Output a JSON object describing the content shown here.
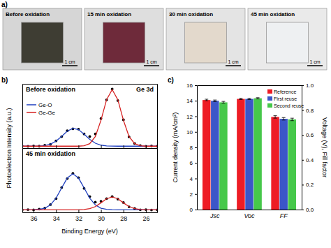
{
  "panel_a": {
    "label": "a)",
    "scale_bar": "1 cm",
    "photos": [
      {
        "label": "Before oxidation",
        "color": "#3e3d33"
      },
      {
        "label": "15 min oxidation",
        "color": "#6e2a3a"
      },
      {
        "label": "30 min oxidation",
        "color": "#e3d9cc"
      },
      {
        "label": "45 min oxidation",
        "color": "#eef0f2"
      }
    ]
  },
  "chart_data": [
    {
      "type": "line",
      "panel_label": "b)",
      "title": "Before oxidation",
      "annotation": "Ge 3d",
      "ylabel": "Photoelectron Intensity (a.u.)",
      "x": [
        37,
        36.5,
        36,
        35.5,
        35,
        34.5,
        34,
        33.5,
        33,
        32.5,
        32,
        31.5,
        31,
        30.5,
        30,
        29.5,
        29,
        28.5,
        28,
        27.5,
        27,
        26.5,
        26,
        25.5,
        25
      ],
      "xlim": [
        37,
        25
      ],
      "xticks": [
        36,
        34,
        32,
        30,
        28,
        26
      ],
      "ylim": [
        0,
        1
      ],
      "tick_labels": false,
      "legend": "center left",
      "grid": false,
      "series": [
        {
          "type": "scatter",
          "marker": "circle",
          "color": "#000000",
          "values": [
            0.032,
            0.028,
            0.035,
            0.03,
            0.045,
            0.058,
            0.112,
            0.178,
            0.27,
            0.3,
            0.295,
            0.22,
            0.18,
            0.22,
            0.46,
            0.75,
            0.92,
            0.74,
            0.44,
            0.175,
            0.072,
            0.04,
            0.028,
            0.033,
            0.03
          ]
        },
        {
          "name": "Ge-O",
          "color": "#1f3fbf",
          "values": [
            0.03,
            0.03,
            0.03,
            0.032,
            0.04,
            0.061,
            0.108,
            0.183,
            0.264,
            0.309,
            0.288,
            0.217,
            0.135,
            0.076,
            0.046,
            0.034,
            0.031,
            0.03,
            0.03,
            0.03,
            0.03,
            0.03,
            0.03,
            0.03,
            0.03
          ]
        },
        {
          "name": "Ge-Ge",
          "color": "#d62020",
          "values": [
            0.03,
            0.03,
            0.03,
            0.03,
            0.03,
            0.03,
            0.03,
            0.03,
            0.03,
            0.03,
            0.03,
            0.037,
            0.069,
            0.181,
            0.433,
            0.754,
            0.91,
            0.754,
            0.433,
            0.181,
            0.069,
            0.037,
            0.03,
            0.03,
            0.03
          ]
        }
      ]
    },
    {
      "type": "line",
      "title": "45 min oxidation",
      "xlabel": "Binding Energy (eV)",
      "x": [
        37,
        36.5,
        36,
        35.5,
        35,
        34.5,
        34,
        33.5,
        33,
        32.5,
        32,
        31.5,
        31,
        30.5,
        30,
        29.5,
        29,
        28.5,
        28,
        27.5,
        27,
        26.5,
        26,
        25.5,
        25
      ],
      "xlim": [
        37,
        25
      ],
      "xticks": [
        36,
        34,
        32,
        30,
        28,
        26
      ],
      "ylim": [
        0,
        0.75
      ],
      "tick_labels": "x",
      "grid": false,
      "series": [
        {
          "type": "scatter",
          "marker": "circle",
          "color": "#000000",
          "values": [
            0.03,
            0.032,
            0.029,
            0.038,
            0.05,
            0.09,
            0.16,
            0.29,
            0.395,
            0.455,
            0.405,
            0.28,
            0.185,
            0.12,
            0.13,
            0.16,
            0.185,
            0.155,
            0.115,
            0.065,
            0.045,
            0.03,
            0.032,
            0.028,
            0.03
          ]
        },
        {
          "color": "#1f3fbf",
          "values": [
            0.03,
            0.03,
            0.031,
            0.035,
            0.048,
            0.087,
            0.166,
            0.285,
            0.401,
            0.45,
            0.401,
            0.285,
            0.166,
            0.087,
            0.048,
            0.035,
            0.031,
            0.03,
            0.03,
            0.03,
            0.03,
            0.03,
            0.03,
            0.03,
            0.03
          ]
        },
        {
          "color": "#d62020",
          "values": [
            0.03,
            0.03,
            0.03,
            0.03,
            0.03,
            0.03,
            0.03,
            0.03,
            0.03,
            0.03,
            0.03,
            0.033,
            0.043,
            0.067,
            0.111,
            0.159,
            0.18,
            0.159,
            0.111,
            0.067,
            0.043,
            0.033,
            0.03,
            0.03,
            0.03
          ]
        }
      ]
    },
    {
      "type": "bar",
      "panel_label": "c)",
      "categories": [
        "Jsc",
        "Voc",
        "FF"
      ],
      "ylabel": "Current density (mA/cm²)",
      "y2label": "Voltage (V), Fill factor",
      "ylim": [
        0,
        16
      ],
      "yticks": [
        0,
        2,
        4,
        6,
        8,
        10,
        12,
        14,
        16
      ],
      "y2lim": [
        0,
        1
      ],
      "y2ticks": [
        {
          "value": 0,
          "label": "0.0"
        },
        {
          "value": 0.2,
          "label": "0.2"
        },
        {
          "value": 0.4,
          "label": "0.4"
        },
        {
          "value": 0.6,
          "label": "0.6"
        },
        {
          "value": 0.8,
          "label": "0.8"
        },
        {
          "value": 1,
          "label": "1.0"
        }
      ],
      "legend": "upper right",
      "grid": false,
      "series": [
        {
          "name": "Reference",
          "color": "#ee1c25",
          "values": [
            14.1,
            null,
            null
          ],
          "errors": [
            0.1,
            null,
            null
          ],
          "y2_values": [
            null,
            0.89,
            0.745
          ],
          "y2_errors": [
            null,
            0.005,
            0.01
          ]
        },
        {
          "name": "First reuse",
          "color": "#3b56c8",
          "values": [
            14.0,
            null,
            null
          ],
          "errors": [
            0.1,
            null,
            null
          ],
          "y2_values": [
            null,
            0.89,
            0.73
          ],
          "y2_errors": [
            null,
            0.005,
            0.01
          ]
        },
        {
          "name": "Second reuse",
          "color": "#46c84a",
          "values": [
            13.8,
            null,
            null
          ],
          "errors": [
            0.12,
            null,
            null
          ],
          "y2_values": [
            null,
            0.895,
            0.725
          ],
          "y2_errors": [
            null,
            0.005,
            0.01
          ]
        }
      ]
    }
  ]
}
